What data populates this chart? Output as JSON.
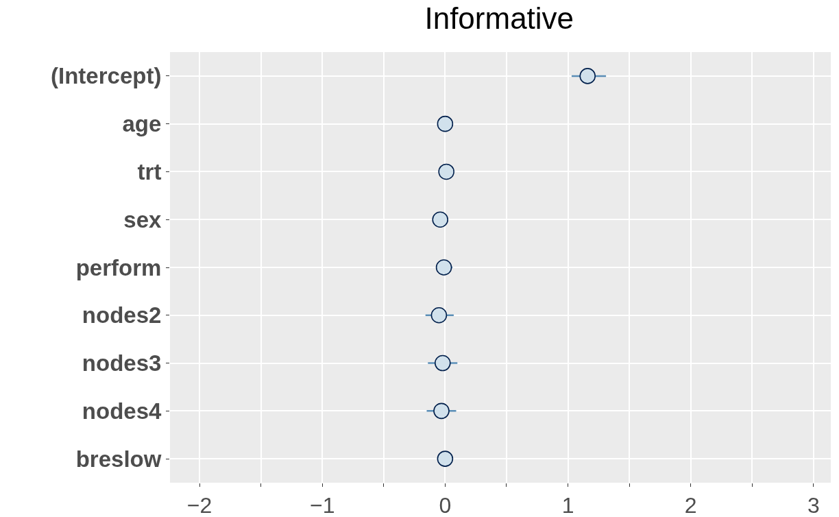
{
  "chart_data": {
    "type": "scatter",
    "title": "Informative",
    "orientation": "horizontal",
    "categories": [
      "(Intercept)",
      "age",
      "trt",
      "sex",
      "perform",
      "nodes2",
      "nodes3",
      "nodes4",
      "breslow"
    ],
    "color": "#d1e1ec",
    "values": [
      1.16,
      0.0,
      0.01,
      -0.04,
      -0.01,
      -0.05,
      -0.02,
      -0.03,
      0.0
    ],
    "errors": [
      [
        1.03,
        1.31
      ],
      null,
      null,
      null,
      [
        -0.07,
        0.06
      ],
      [
        -0.16,
        0.07
      ],
      [
        -0.14,
        0.1
      ],
      [
        -0.15,
        0.09
      ],
      null
    ],
    "xlim": [
      -2.24,
      3.14
    ],
    "xticks": [
      -2,
      {
        "value": -1.5,
        "label": null
      },
      -1,
      {
        "value": -0.5,
        "label": null
      },
      0,
      {
        "value": 0.5,
        "label": null
      },
      1,
      {
        "value": 1.5,
        "label": null
      },
      2,
      {
        "value": 2.5,
        "label": null
      },
      3
    ],
    "grid": true,
    "marker": "circle"
  }
}
